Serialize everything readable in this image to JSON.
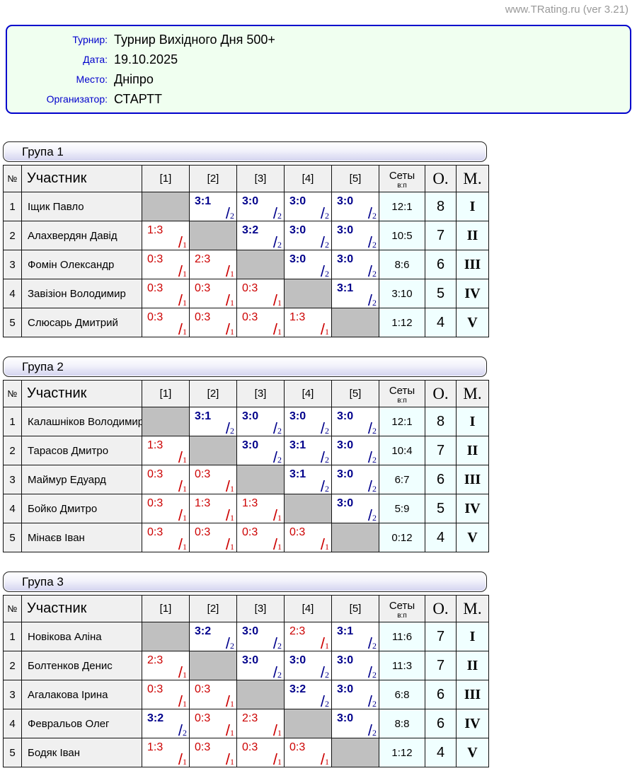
{
  "site": {
    "label": "www.TRating.ru (ver 3.21)"
  },
  "info": {
    "rows": [
      {
        "label": "Турнир:",
        "value": "Турнир Вихідного Дня 500+"
      },
      {
        "label": "Дата:",
        "value": "19.10.2025"
      },
      {
        "label": "Место:",
        "value": "Дніпро"
      },
      {
        "label": "Организатор:",
        "value": "СТАРТТ"
      }
    ]
  },
  "table_header": {
    "num": "№",
    "participant": "Участник",
    "opponents": [
      "[1]",
      "[2]",
      "[3]",
      "[4]",
      "[5]"
    ],
    "sets": "Сеты",
    "sets_sub": "в:п",
    "points": "О.",
    "place": "М."
  },
  "groups": [
    {
      "title": "Група 1",
      "rows": [
        {
          "num": "1",
          "name": "Іщик Павло",
          "cells": [
            null,
            {
              "s": "3:1",
              "n": "2",
              "w": true
            },
            {
              "s": "3:0",
              "n": "2",
              "w": true
            },
            {
              "s": "3:0",
              "n": "2",
              "w": true
            },
            {
              "s": "3:0",
              "n": "2",
              "w": true
            }
          ],
          "sets": "12:1",
          "points": "8",
          "place": "I"
        },
        {
          "num": "2",
          "name": "Алахвердян Давід",
          "cells": [
            {
              "s": "1:3",
              "n": "1",
              "w": false
            },
            null,
            {
              "s": "3:2",
              "n": "2",
              "w": true
            },
            {
              "s": "3:0",
              "n": "2",
              "w": true
            },
            {
              "s": "3:0",
              "n": "2",
              "w": true
            }
          ],
          "sets": "10:5",
          "points": "7",
          "place": "II"
        },
        {
          "num": "3",
          "name": "Фомін Олександр",
          "cells": [
            {
              "s": "0:3",
              "n": "1",
              "w": false
            },
            {
              "s": "2:3",
              "n": "1",
              "w": false
            },
            null,
            {
              "s": "3:0",
              "n": "2",
              "w": true
            },
            {
              "s": "3:0",
              "n": "2",
              "w": true
            }
          ],
          "sets": "8:6",
          "points": "6",
          "place": "III"
        },
        {
          "num": "4",
          "name": "Завізіон Володимир",
          "cells": [
            {
              "s": "0:3",
              "n": "1",
              "w": false
            },
            {
              "s": "0:3",
              "n": "1",
              "w": false
            },
            {
              "s": "0:3",
              "n": "1",
              "w": false
            },
            null,
            {
              "s": "3:1",
              "n": "2",
              "w": true
            }
          ],
          "sets": "3:10",
          "points": "5",
          "place": "IV"
        },
        {
          "num": "5",
          "name": "Слюсарь Дмитрий",
          "cells": [
            {
              "s": "0:3",
              "n": "1",
              "w": false
            },
            {
              "s": "0:3",
              "n": "1",
              "w": false
            },
            {
              "s": "0:3",
              "n": "1",
              "w": false
            },
            {
              "s": "1:3",
              "n": "1",
              "w": false
            },
            null
          ],
          "sets": "1:12",
          "points": "4",
          "place": "V"
        }
      ]
    },
    {
      "title": "Група 2",
      "rows": [
        {
          "num": "1",
          "name": "Калашніков Володимир",
          "cells": [
            null,
            {
              "s": "3:1",
              "n": "2",
              "w": true
            },
            {
              "s": "3:0",
              "n": "2",
              "w": true
            },
            {
              "s": "3:0",
              "n": "2",
              "w": true
            },
            {
              "s": "3:0",
              "n": "2",
              "w": true
            }
          ],
          "sets": "12:1",
          "points": "8",
          "place": "I"
        },
        {
          "num": "2",
          "name": "Тарасов Дмитро",
          "cells": [
            {
              "s": "1:3",
              "n": "1",
              "w": false
            },
            null,
            {
              "s": "3:0",
              "n": "2",
              "w": true
            },
            {
              "s": "3:1",
              "n": "2",
              "w": true
            },
            {
              "s": "3:0",
              "n": "2",
              "w": true
            }
          ],
          "sets": "10:4",
          "points": "7",
          "place": "II"
        },
        {
          "num": "3",
          "name": "Маймур Едуард",
          "cells": [
            {
              "s": "0:3",
              "n": "1",
              "w": false
            },
            {
              "s": "0:3",
              "n": "1",
              "w": false
            },
            null,
            {
              "s": "3:1",
              "n": "2",
              "w": true
            },
            {
              "s": "3:0",
              "n": "2",
              "w": true
            }
          ],
          "sets": "6:7",
          "points": "6",
          "place": "III"
        },
        {
          "num": "4",
          "name": "Бойко Дмитро",
          "cells": [
            {
              "s": "0:3",
              "n": "1",
              "w": false
            },
            {
              "s": "1:3",
              "n": "1",
              "w": false
            },
            {
              "s": "1:3",
              "n": "1",
              "w": false
            },
            null,
            {
              "s": "3:0",
              "n": "2",
              "w": true
            }
          ],
          "sets": "5:9",
          "points": "5",
          "place": "IV"
        },
        {
          "num": "5",
          "name": "Мінаєв Іван",
          "cells": [
            {
              "s": "0:3",
              "n": "1",
              "w": false
            },
            {
              "s": "0:3",
              "n": "1",
              "w": false
            },
            {
              "s": "0:3",
              "n": "1",
              "w": false
            },
            {
              "s": "0:3",
              "n": "1",
              "w": false
            },
            null
          ],
          "sets": "0:12",
          "points": "4",
          "place": "V"
        }
      ]
    },
    {
      "title": "Група 3",
      "rows": [
        {
          "num": "1",
          "name": "Новікова Аліна",
          "cells": [
            null,
            {
              "s": "3:2",
              "n": "2",
              "w": true
            },
            {
              "s": "3:0",
              "n": "2",
              "w": true
            },
            {
              "s": "2:3",
              "n": "1",
              "w": false
            },
            {
              "s": "3:1",
              "n": "2",
              "w": true
            }
          ],
          "sets": "11:6",
          "points": "7",
          "place": "I"
        },
        {
          "num": "2",
          "name": "Болтенков Денис",
          "cells": [
            {
              "s": "2:3",
              "n": "1",
              "w": false
            },
            null,
            {
              "s": "3:0",
              "n": "2",
              "w": true
            },
            {
              "s": "3:0",
              "n": "2",
              "w": true
            },
            {
              "s": "3:0",
              "n": "2",
              "w": true
            }
          ],
          "sets": "11:3",
          "points": "7",
          "place": "II"
        },
        {
          "num": "3",
          "name": "Агалакова Ірина",
          "cells": [
            {
              "s": "0:3",
              "n": "1",
              "w": false
            },
            {
              "s": "0:3",
              "n": "1",
              "w": false
            },
            null,
            {
              "s": "3:2",
              "n": "2",
              "w": true
            },
            {
              "s": "3:0",
              "n": "2",
              "w": true
            }
          ],
          "sets": "6:8",
          "points": "6",
          "place": "III"
        },
        {
          "num": "4",
          "name": "Февральов Олег",
          "cells": [
            {
              "s": "3:2",
              "n": "2",
              "w": true
            },
            {
              "s": "0:3",
              "n": "1",
              "w": false
            },
            {
              "s": "2:3",
              "n": "1",
              "w": false
            },
            null,
            {
              "s": "3:0",
              "n": "2",
              "w": true
            }
          ],
          "sets": "8:8",
          "points": "6",
          "place": "IV"
        },
        {
          "num": "5",
          "name": "Бодяк Іван",
          "cells": [
            {
              "s": "1:3",
              "n": "1",
              "w": false
            },
            {
              "s": "0:3",
              "n": "1",
              "w": false
            },
            {
              "s": "0:3",
              "n": "1",
              "w": false
            },
            {
              "s": "0:3",
              "n": "1",
              "w": false
            },
            null
          ],
          "sets": "1:12",
          "points": "4",
          "place": "V"
        }
      ]
    }
  ],
  "colors": {
    "accent_blue": "#0000cc",
    "win_navy": "#00008b",
    "loss_red": "#cc0000",
    "summary_azure": "#f0ffff",
    "cell_gray": "#f0f0f0",
    "diagonal_gray": "#c0c0c0",
    "info_box_bg": "#f0fff0",
    "site_label_gray": "#999999",
    "group_bar_gradient_end": "#d2d2ef"
  }
}
